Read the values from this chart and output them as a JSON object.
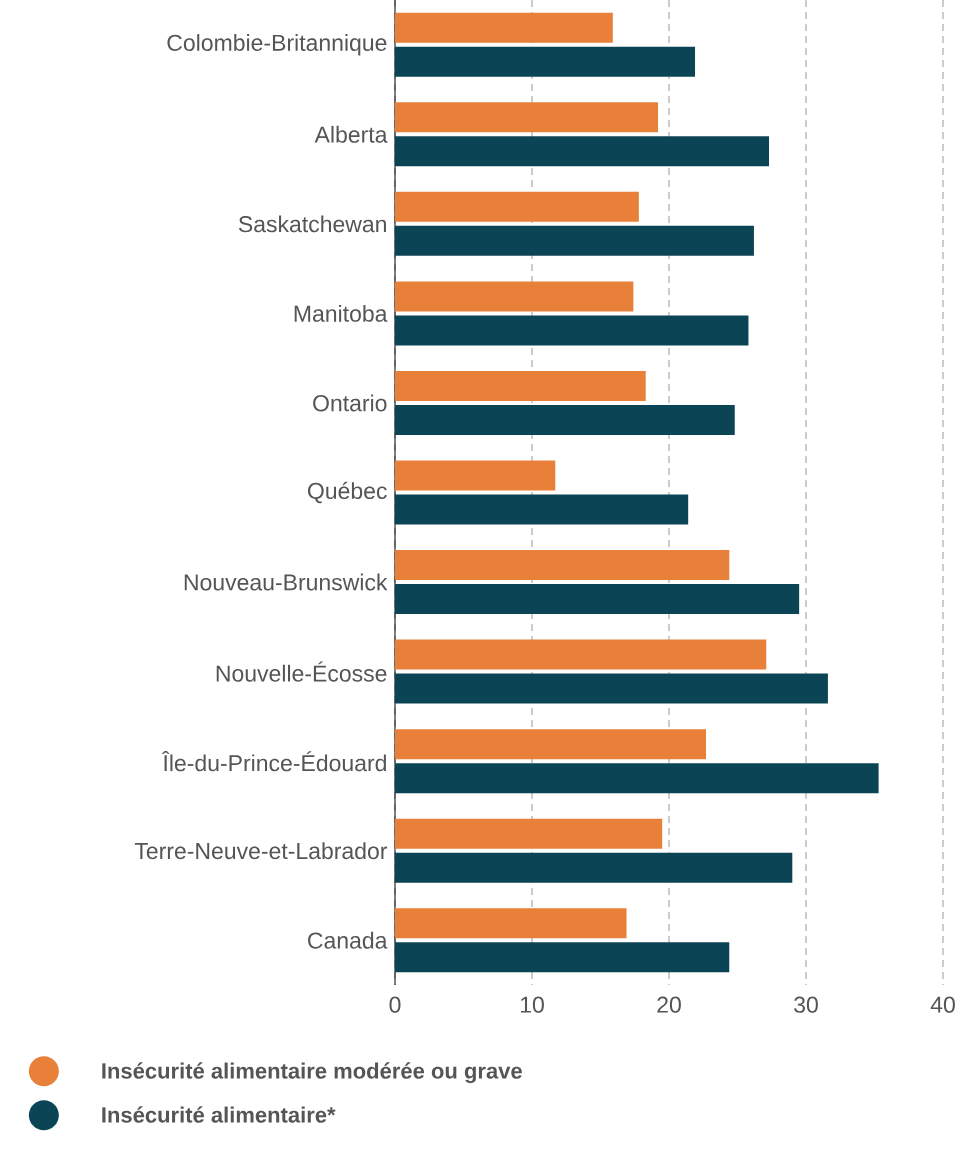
{
  "chart_data": {
    "type": "bar",
    "orientation": "horizontal",
    "categories": [
      "Colombie-Britannique",
      "Alberta",
      "Saskatchewan",
      "Manitoba",
      "Ontario",
      "Québec",
      "Nouveau-Brunswick",
      "Nouvelle-Écosse",
      "Île-du-Prince-Édouard",
      "Terre-Neuve-et-Labrador",
      "Canada"
    ],
    "series": [
      {
        "name": "Insécurité alimentaire modérée ou grave",
        "color": "#e8803a",
        "values": [
          15.9,
          19.2,
          17.8,
          17.4,
          18.3,
          11.7,
          24.4,
          27.1,
          22.7,
          19.5,
          16.9
        ]
      },
      {
        "name": "Insécurité alimentaire*",
        "color": "#0b4555",
        "values": [
          21.9,
          27.3,
          26.2,
          25.8,
          24.8,
          21.4,
          29.5,
          31.6,
          35.3,
          29.0,
          24.4
        ]
      }
    ],
    "xlim": [
      0,
      40
    ],
    "xticks": [
      0,
      10,
      20,
      30,
      40
    ],
    "grid": "x",
    "legend": "bottom"
  }
}
